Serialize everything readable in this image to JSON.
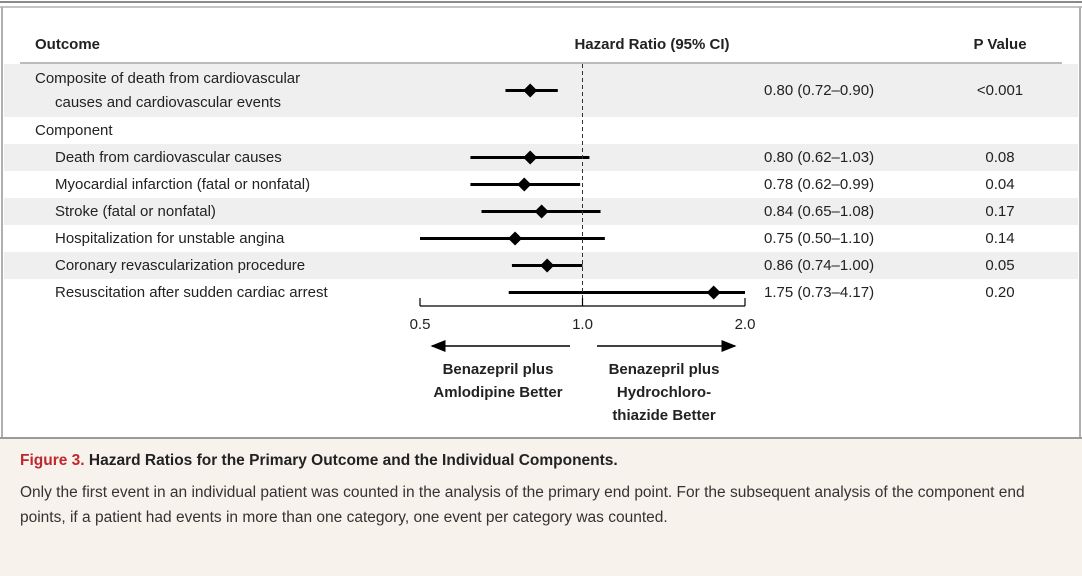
{
  "chart_data": {
    "type": "forest",
    "columns": {
      "outcome": "Outcome",
      "estimate": "Hazard Ratio (95% CI)",
      "p": "P Value"
    },
    "categories": [
      "Composite of death from cardiovascular\ncauses and cardiovascular events",
      "Component",
      "Death from cardiovascular causes",
      "Myocardial infarction (fatal or nonfatal)",
      "Stroke (fatal or nonfatal)",
      "Hospitalization for unstable angina",
      "Coronary revascularization procedure",
      "Resuscitation after sudden cardiac arrest"
    ],
    "values": [
      0.8,
      null,
      0.8,
      0.78,
      0.84,
      0.75,
      0.86,
      1.75
    ],
    "lower": [
      0.72,
      null,
      0.62,
      0.62,
      0.65,
      0.5,
      0.74,
      0.73
    ],
    "upper": [
      0.9,
      null,
      1.03,
      0.99,
      1.08,
      1.1,
      1.0,
      4.17
    ],
    "value_labels": [
      "0.80 (0.72–0.90)",
      null,
      "0.80 (0.62–1.03)",
      "0.78 (0.62–0.99)",
      "0.84 (0.65–1.08)",
      "0.75 (0.50–1.10)",
      "0.86 (0.74–1.00)",
      "1.75 (0.73–4.17)"
    ],
    "p_values": [
      "<0.001",
      null,
      "0.08",
      "0.04",
      "0.17",
      "0.14",
      "0.05",
      "0.20"
    ],
    "xlim": [
      0.5,
      2
    ],
    "xticks": [
      0.5,
      {
        "value": 1,
        "label": "1.0"
      },
      {
        "value": 2,
        "label": "2.0"
      }
    ],
    "log_x": true,
    "reference_line": 1,
    "direction_labels": [
      "Benazepril plus\nAmlodipine Better",
      "Benazepril plus\nHydrochloro-\nthiazide Better"
    ],
    "color": "#000000"
  },
  "caption": {
    "label": "Figure 3.",
    "title": "Hazard Ratios for the Primary Outcome and the Individual Components.",
    "text": "Only the first event in an individual patient was counted in the analysis of the primary end point. For the subsequent analysis of the component end points, if a patient had events in more than one category, one event per category was counted."
  }
}
